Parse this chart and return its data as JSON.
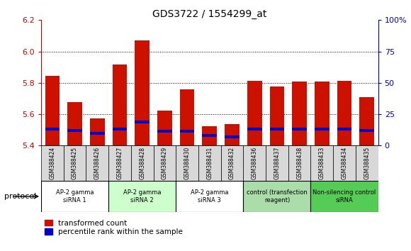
{
  "title": "GDS3722 / 1554299_at",
  "samples": [
    "GSM388424",
    "GSM388425",
    "GSM388426",
    "GSM388427",
    "GSM388428",
    "GSM388429",
    "GSM388430",
    "GSM388431",
    "GSM388432",
    "GSM388436",
    "GSM388437",
    "GSM388438",
    "GSM388433",
    "GSM388434",
    "GSM388435"
  ],
  "red_values": [
    5.845,
    5.675,
    5.575,
    5.915,
    6.07,
    5.625,
    5.76,
    5.525,
    5.535,
    5.815,
    5.775,
    5.81,
    5.81,
    5.815,
    5.71
  ],
  "blue_values": [
    5.505,
    5.495,
    5.48,
    5.505,
    5.55,
    5.49,
    5.49,
    5.465,
    5.455,
    5.505,
    5.505,
    5.505,
    5.505,
    5.505,
    5.495
  ],
  "ylim": [
    5.4,
    6.2
  ],
  "y2lim": [
    0,
    100
  ],
  "yticks": [
    5.4,
    5.6,
    5.8,
    6.0,
    6.2
  ],
  "y2ticks": [
    0,
    25,
    50,
    75,
    100
  ],
  "red_color": "#cc1100",
  "blue_color": "#0000cc",
  "bar_width": 0.65,
  "groups": [
    {
      "label": "AP-2 gamma\nsiRNA 1",
      "indices": [
        0,
        1,
        2
      ],
      "color": "#ffffff"
    },
    {
      "label": "AP-2 gamma\nsiRNA 2",
      "indices": [
        3,
        4,
        5
      ],
      "color": "#ccffcc"
    },
    {
      "label": "AP-2 gamma\nsiRNA 3",
      "indices": [
        6,
        7,
        8
      ],
      "color": "#ffffff"
    },
    {
      "label": "control (transfection\nreagent)",
      "indices": [
        9,
        10,
        11
      ],
      "color": "#aaddaa"
    },
    {
      "label": "Non-silencing control\nsiRNA",
      "indices": [
        12,
        13,
        14
      ],
      "color": "#55cc55"
    }
  ],
  "protocol_label": "protocol",
  "legend_red": "transformed count",
  "legend_blue": "percentile rank within the sample",
  "axis_color_left": "#cc0000",
  "axis_color_right": "#0000cc"
}
